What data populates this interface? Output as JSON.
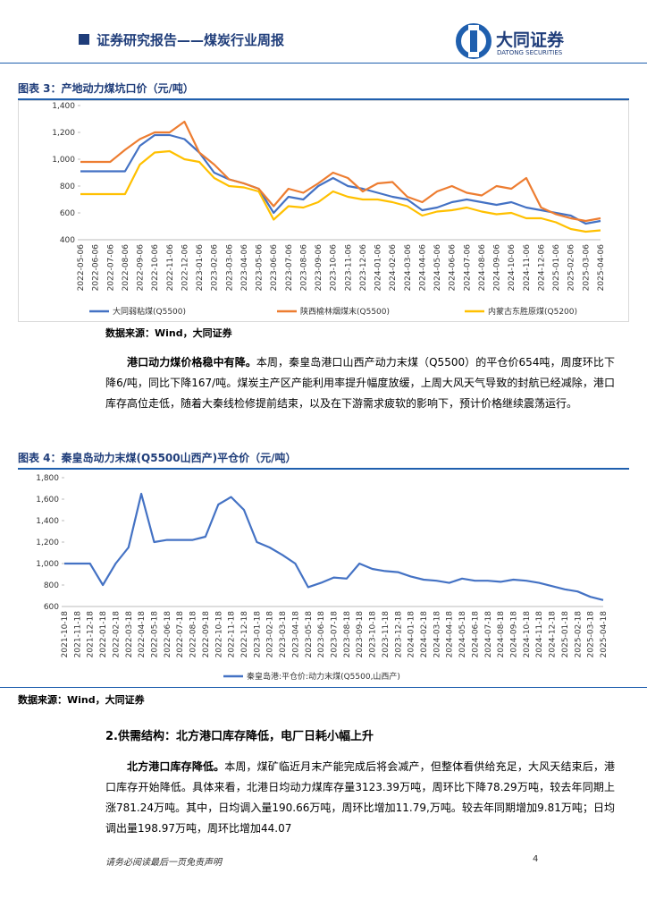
{
  "header": {
    "title": "证券研究报告——煤炭行业周报",
    "logo_cn": "大同证券",
    "logo_en": "DATONG SECURITIES"
  },
  "figure3": {
    "caption": "图表 3：产地动力煤坑口价（元/吨）",
    "source": "数据来源：Wind，大同证券"
  },
  "paragraph1": {
    "lead": "港口动力煤价格稳中有降。",
    "body": "本周，秦皇岛港口山西产动力末煤（Q5500）的平仓价654吨，周度环比下降6/吨，同比下降167/吨。煤炭主产区产能利用率提升幅度放缓，上周大风天气导致的封航已经减除，港口库存高位走低，随着大秦线检修提前结束，以及在下游需求疲软的影响下，预计价格继续震荡运行。"
  },
  "figure4": {
    "caption": "图表 4：秦皇岛动力末煤(Q5500山西产)平仓价（元/吨）",
    "source": "数据来源：Wind，大同证券"
  },
  "section": {
    "title": "2.供需结构：北方港口库存降低，电厂日耗小幅上升"
  },
  "paragraph2": {
    "lead": "北方港口库存降低。",
    "body": "本周，煤矿临近月末产能完成后将会减产，但整体看供给充足，大风天结束后，港口库存开始降低。具体来看，北港日均动力煤库存量3123.39万吨，周环比下降78.29万吨，较去年同期上涨781.24万吨。其中，日均调入量190.66万吨，周环比增加11.79,万吨。较去年同期增加9.81万吨；日均调出量198.97万吨，周环比增加44.07"
  },
  "footer": {
    "disclaimer": "请务必阅读最后一页免责声明",
    "page": "4"
  },
  "chart_data": [
    {
      "type": "line",
      "categories": [
        "2022-05-06",
        "2022-06-06",
        "2022-07-06",
        "2022-08-06",
        "2022-09-06",
        "2022-10-06",
        "2022-11-06",
        "2022-12-06",
        "2023-01-06",
        "2023-02-06",
        "2023-03-06",
        "2023-04-06",
        "2023-05-06",
        "2023-06-06",
        "2023-07-06",
        "2023-08-06",
        "2023-09-06",
        "2023-10-06",
        "2023-11-06",
        "2023-12-06",
        "2024-01-06",
        "2024-02-06",
        "2024-03-06",
        "2024-04-06",
        "2024-05-06",
        "2024-06-06",
        "2024-07-06",
        "2024-08-06",
        "2024-09-06",
        "2024-10-06",
        "2024-11-06",
        "2024-12-06",
        "2025-01-06",
        "2025-02-06",
        "2025-03-06",
        "2025-04-06"
      ],
      "series": [
        {
          "name": "大同弱粘煤(Q5500)",
          "color": "#4472c4",
          "values": [
            910,
            910,
            910,
            910,
            1100,
            1180,
            1180,
            1150,
            1050,
            900,
            850,
            820,
            780,
            600,
            720,
            700,
            800,
            860,
            800,
            780,
            750,
            720,
            700,
            620,
            640,
            680,
            700,
            680,
            660,
            680,
            640,
            620,
            600,
            580,
            520,
            540
          ]
        },
        {
          "name": "陕西榆林烟煤末(Q5500)",
          "color": "#ed7d31",
          "values": [
            980,
            980,
            980,
            1070,
            1150,
            1200,
            1200,
            1280,
            1050,
            960,
            850,
            820,
            780,
            650,
            780,
            750,
            820,
            900,
            860,
            760,
            820,
            830,
            720,
            680,
            760,
            800,
            750,
            730,
            800,
            780,
            860,
            640,
            590,
            560,
            540,
            560
          ]
        },
        {
          "name": "内蒙古东胜原煤(Q5200)",
          "color": "#ffc000",
          "values": [
            740,
            740,
            740,
            740,
            960,
            1050,
            1060,
            1000,
            980,
            860,
            800,
            790,
            760,
            550,
            650,
            640,
            680,
            760,
            720,
            700,
            700,
            680,
            650,
            580,
            610,
            620,
            640,
            610,
            590,
            600,
            560,
            560,
            530,
            480,
            460,
            470
          ]
        }
      ],
      "ylim": [
        400,
        1400
      ],
      "yticks": [
        400,
        600,
        800,
        {
          "value": 1000,
          "label": "1,000"
        },
        {
          "value": 1200,
          "label": "1,200"
        },
        {
          "value": 1400,
          "label": "1,400"
        }
      ]
    },
    {
      "type": "line",
      "categories": [
        "2021-10-18",
        "2021-11-18",
        "2021-12-18",
        "2022-01-18",
        "2022-02-18",
        "2022-03-18",
        "2022-04-18",
        "2022-05-18",
        "2022-06-18",
        "2022-07-18",
        "2022-08-18",
        "2022-09-18",
        "2022-10-18",
        "2022-11-18",
        "2022-12-18",
        "2023-01-18",
        "2023-02-18",
        "2023-03-18",
        "2023-04-18",
        "2023-05-18",
        "2023-06-18",
        "2023-07-18",
        "2023-08-18",
        "2023-09-18",
        "2023-10-18",
        "2023-11-18",
        "2023-12-18",
        "2024-01-18",
        "2024-02-18",
        "2024-03-18",
        "2024-04-18",
        "2024-05-18",
        "2024-06-18",
        "2024-07-18",
        "2024-08-18",
        "2024-09-18",
        "2024-10-18",
        "2024-11-18",
        "2024-12-18",
        "2025-01-18",
        "2025-02-18",
        "2025-03-18",
        "2025-04-18"
      ],
      "series": [
        {
          "name": "秦皇岛港:平仓价:动力末煤(Q5500,山西产)",
          "color": "#4472c4",
          "values": [
            1000,
            1000,
            1000,
            800,
            1000,
            1150,
            1650,
            1200,
            1220,
            1220,
            1220,
            1250,
            1550,
            1620,
            1500,
            1200,
            1150,
            1080,
            1000,
            780,
            820,
            870,
            860,
            1000,
            950,
            930,
            920,
            880,
            850,
            840,
            820,
            860,
            840,
            840,
            830,
            850,
            840,
            820,
            790,
            760,
            740,
            690,
            660
          ]
        }
      ],
      "ylim": [
        600,
        1800
      ],
      "yticks": [
        600,
        800,
        {
          "value": 1000,
          "label": "1,000"
        },
        {
          "value": 1200,
          "label": "1,200"
        },
        {
          "value": 1400,
          "label": "1,400"
        },
        {
          "value": 1600,
          "label": "1,600"
        },
        {
          "value": 1800,
          "label": "1,800"
        }
      ]
    }
  ]
}
